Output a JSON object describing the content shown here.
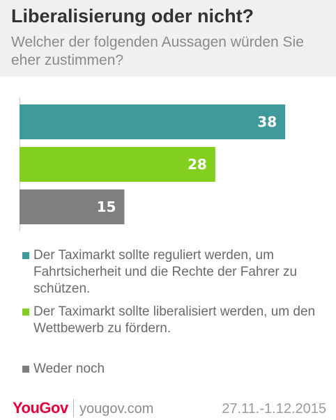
{
  "header": {
    "title": "Liberalisierung oder nicht?",
    "subtitle": "Welcher der folgenden Aussagen würden Sie eher zustimmen?"
  },
  "chart_data": {
    "type": "bar",
    "orientation": "horizontal",
    "categories": [
      "Der Taximarkt sollte reguliert werden, um Fahrtsicherheit und die Rechte der Fahrer zu schützen.",
      "Der Taximarkt sollte liberalisiert werden, um den Wettbewerb zu fördern.",
      "Weder noch"
    ],
    "values": [
      38,
      28,
      15
    ],
    "colors": [
      "#3f9a9b",
      "#83cf1d",
      "#7f7f7f"
    ],
    "data_labels": [
      "38",
      "28",
      "15"
    ],
    "xlim": [
      0,
      40
    ],
    "grid": false,
    "legend": "bottom"
  },
  "legend": {
    "items": [
      {
        "label": "Der Taximarkt sollte reguliert werden, um Fahrtsicherheit und die Rechte der Fahrer zu schützen.",
        "color": "#3f9a9b"
      },
      {
        "label": "Der Taximarkt sollte liberalisiert werden, um den Wettbewerb zu fördern.",
        "color": "#83cf1d"
      },
      {
        "label": "Weder noch",
        "color": "#7f7f7f"
      }
    ]
  },
  "footer": {
    "logo": "YouGov",
    "site": "yougov.com",
    "date": "27.11.-1.12.2015"
  }
}
